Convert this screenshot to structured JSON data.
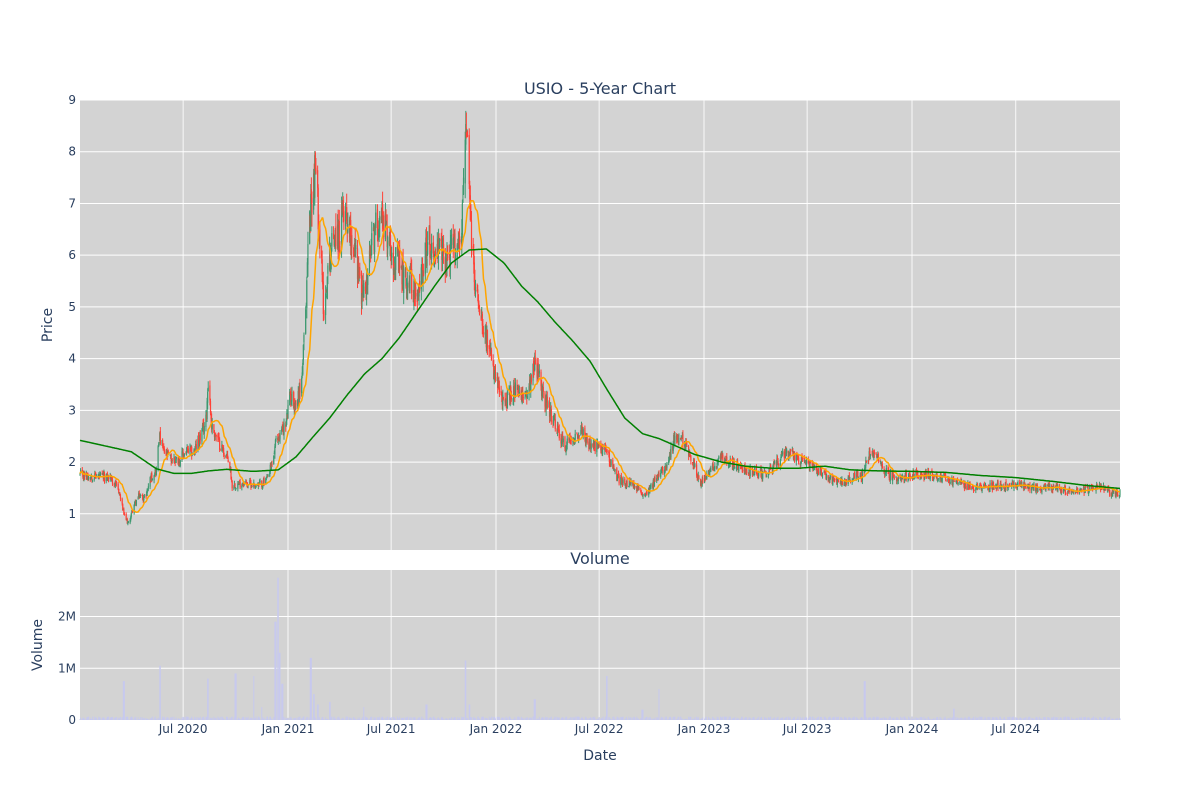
{
  "chart_data": {
    "type": "candlestick",
    "title": "USIO - 5-Year Chart",
    "price_panel": {
      "ylabel": "Price",
      "ylim": [
        0.3,
        9.0
      ],
      "yticks": [
        1,
        2,
        3,
        4,
        5,
        6,
        7,
        8,
        9
      ],
      "background": "#d3d3d3",
      "up_color": "#3d9970",
      "down_color": "#ff4136",
      "ma_short_color": "#ffa500",
      "ma_long_color": "#008000",
      "grid": true,
      "price_keypoints": [
        [
          "2020-01-02",
          1.75
        ],
        [
          "2020-02-01",
          1.72
        ],
        [
          "2020-02-25",
          1.7
        ],
        [
          "2020-03-10",
          1.45
        ],
        [
          "2020-03-20",
          0.95
        ],
        [
          "2020-03-27",
          0.8
        ],
        [
          "2020-04-05",
          1.15
        ],
        [
          "2020-04-15",
          1.35
        ],
        [
          "2020-04-25",
          1.3
        ],
        [
          "2020-05-05",
          1.7
        ],
        [
          "2020-05-15",
          1.85
        ],
        [
          "2020-05-20",
          2.5
        ],
        [
          "2020-05-28",
          2.2
        ],
        [
          "2020-06-10",
          2.05
        ],
        [
          "2020-06-25",
          2.05
        ],
        [
          "2020-07-05",
          2.2
        ],
        [
          "2020-07-20",
          2.2
        ],
        [
          "2020-08-01",
          2.5
        ],
        [
          "2020-08-10",
          2.8
        ],
        [
          "2020-08-14",
          3.6
        ],
        [
          "2020-08-20",
          2.7
        ],
        [
          "2020-09-01",
          2.4
        ],
        [
          "2020-09-10",
          2.2
        ],
        [
          "2020-09-20",
          2.0
        ],
        [
          "2020-09-25",
          1.55
        ],
        [
          "2020-10-15",
          1.6
        ],
        [
          "2020-11-10",
          1.55
        ],
        [
          "2020-11-25",
          1.65
        ],
        [
          "2020-12-05",
          2.0
        ],
        [
          "2020-12-10",
          2.35
        ],
        [
          "2020-12-20",
          2.6
        ],
        [
          "2020-12-28",
          2.7
        ],
        [
          "2021-01-05",
          3.3
        ],
        [
          "2021-01-15",
          3.1
        ],
        [
          "2021-01-25",
          3.6
        ],
        [
          "2021-02-01",
          4.8
        ],
        [
          "2021-02-05",
          6.2
        ],
        [
          "2021-02-10",
          7.0
        ],
        [
          "2021-02-18",
          7.7
        ],
        [
          "2021-02-25",
          6.5
        ],
        [
          "2021-03-05",
          4.9
        ],
        [
          "2021-03-15",
          6.0
        ],
        [
          "2021-03-25",
          6.5
        ],
        [
          "2021-04-01",
          6.3
        ],
        [
          "2021-04-10",
          7.0
        ],
        [
          "2021-04-20",
          6.5
        ],
        [
          "2021-05-01",
          6.0
        ],
        [
          "2021-05-10",
          5.2
        ],
        [
          "2021-05-20",
          5.5
        ],
        [
          "2021-05-28",
          6.2
        ],
        [
          "2021-06-05",
          6.6
        ],
        [
          "2021-06-15",
          6.8
        ],
        [
          "2021-06-25",
          6.4
        ],
        [
          "2021-07-05",
          6.0
        ],
        [
          "2021-07-15",
          5.8
        ],
        [
          "2021-07-25",
          5.5
        ],
        [
          "2021-08-05",
          5.6
        ],
        [
          "2021-08-15",
          5.0
        ],
        [
          "2021-08-25",
          5.8
        ],
        [
          "2021-09-05",
          6.3
        ],
        [
          "2021-09-15",
          6.0
        ],
        [
          "2021-09-25",
          6.1
        ],
        [
          "2021-10-05",
          5.9
        ],
        [
          "2021-10-15",
          6.1
        ],
        [
          "2021-10-25",
          6.2
        ],
        [
          "2021-11-01",
          6.4
        ],
        [
          "2021-11-05",
          7.4
        ],
        [
          "2021-11-08",
          8.5
        ],
        [
          "2021-11-12",
          8.0
        ],
        [
          "2021-11-18",
          6.5
        ],
        [
          "2021-11-25",
          5.4
        ],
        [
          "2021-12-05",
          5.0
        ],
        [
          "2021-12-15",
          4.4
        ],
        [
          "2021-12-25",
          3.9
        ],
        [
          "2022-01-05",
          3.4
        ],
        [
          "2022-01-15",
          3.1
        ],
        [
          "2022-01-25",
          3.3
        ],
        [
          "2022-02-05",
          3.4
        ],
        [
          "2022-02-15",
          3.2
        ],
        [
          "2022-03-01",
          3.5
        ],
        [
          "2022-03-10",
          4.0
        ],
        [
          "2022-03-20",
          3.5
        ],
        [
          "2022-04-01",
          3.1
        ],
        [
          "2022-04-15",
          2.7
        ],
        [
          "2022-05-01",
          2.3
        ],
        [
          "2022-05-15",
          2.5
        ],
        [
          "2022-06-01",
          2.6
        ],
        [
          "2022-06-15",
          2.3
        ],
        [
          "2022-07-01",
          2.3
        ],
        [
          "2022-07-15",
          2.2
        ],
        [
          "2022-08-01",
          1.7
        ],
        [
          "2022-08-15",
          1.6
        ],
        [
          "2022-09-01",
          1.55
        ],
        [
          "2022-09-15",
          1.35
        ],
        [
          "2022-10-01",
          1.55
        ],
        [
          "2022-10-15",
          1.75
        ],
        [
          "2022-11-01",
          2.1
        ],
        [
          "2022-11-10",
          2.45
        ],
        [
          "2022-11-25",
          2.4
        ],
        [
          "2022-12-10",
          2.1
        ],
        [
          "2022-12-25",
          1.6
        ],
        [
          "2023-01-05",
          1.7
        ],
        [
          "2023-01-20",
          1.95
        ],
        [
          "2023-02-05",
          2.1
        ],
        [
          "2023-02-20",
          1.95
        ],
        [
          "2023-03-10",
          1.85
        ],
        [
          "2023-04-01",
          1.8
        ],
        [
          "2023-04-20",
          1.75
        ],
        [
          "2023-05-10",
          2.0
        ],
        [
          "2023-05-25",
          2.2
        ],
        [
          "2023-06-10",
          2.1
        ],
        [
          "2023-06-25",
          2.0
        ],
        [
          "2023-07-10",
          1.9
        ],
        [
          "2023-07-25",
          1.8
        ],
        [
          "2023-08-15",
          1.65
        ],
        [
          "2023-09-01",
          1.6
        ],
        [
          "2023-09-20",
          1.7
        ],
        [
          "2023-10-05",
          1.75
        ],
        [
          "2023-10-15",
          2.1
        ],
        [
          "2023-10-25",
          2.15
        ],
        [
          "2023-11-05",
          2.0
        ],
        [
          "2023-11-20",
          1.75
        ],
        [
          "2023-12-10",
          1.7
        ],
        [
          "2024-01-01",
          1.75
        ],
        [
          "2024-02-01",
          1.75
        ],
        [
          "2024-03-01",
          1.7
        ],
        [
          "2024-04-01",
          1.55
        ],
        [
          "2024-05-01",
          1.5
        ],
        [
          "2024-06-01",
          1.55
        ],
        [
          "2024-07-01",
          1.55
        ],
        [
          "2024-08-01",
          1.5
        ],
        [
          "2024-09-01",
          1.5
        ],
        [
          "2024-10-01",
          1.45
        ],
        [
          "2024-11-01",
          1.45
        ],
        [
          "2024-11-20",
          1.55
        ],
        [
          "2024-12-15",
          1.4
        ],
        [
          "2024-12-31",
          1.4
        ]
      ],
      "ma_long_keypoints": [
        [
          "2020-01-02",
          2.42
        ],
        [
          "2020-04-01",
          2.2
        ],
        [
          "2020-05-15",
          1.87
        ],
        [
          "2020-06-15",
          1.78
        ],
        [
          "2020-07-15",
          1.78
        ],
        [
          "2020-08-15",
          1.83
        ],
        [
          "2020-09-15",
          1.86
        ],
        [
          "2020-11-01",
          1.82
        ],
        [
          "2020-12-15",
          1.85
        ],
        [
          "2021-01-15",
          2.1
        ],
        [
          "2021-02-15",
          2.5
        ],
        [
          "2021-03-15",
          2.85
        ],
        [
          "2021-04-15",
          3.3
        ],
        [
          "2021-05-15",
          3.7
        ],
        [
          "2021-06-15",
          4.0
        ],
        [
          "2021-07-15",
          4.4
        ],
        [
          "2021-08-15",
          4.9
        ],
        [
          "2021-09-15",
          5.4
        ],
        [
          "2021-10-15",
          5.85
        ],
        [
          "2021-11-15",
          6.1
        ],
        [
          "2021-12-15",
          6.12
        ],
        [
          "2022-01-15",
          5.85
        ],
        [
          "2022-02-15",
          5.4
        ],
        [
          "2022-03-15",
          5.1
        ],
        [
          "2022-04-15",
          4.7
        ],
        [
          "2022-05-15",
          4.35
        ],
        [
          "2022-06-15",
          3.95
        ],
        [
          "2022-07-15",
          3.4
        ],
        [
          "2022-08-15",
          2.85
        ],
        [
          "2022-09-15",
          2.55
        ],
        [
          "2022-10-15",
          2.45
        ],
        [
          "2022-11-15",
          2.3
        ],
        [
          "2022-12-15",
          2.15
        ],
        [
          "2023-02-01",
          2.0
        ],
        [
          "2023-03-15",
          1.92
        ],
        [
          "2023-05-01",
          1.88
        ],
        [
          "2023-06-15",
          1.88
        ],
        [
          "2023-08-01",
          1.92
        ],
        [
          "2023-09-15",
          1.85
        ],
        [
          "2023-11-01",
          1.83
        ],
        [
          "2024-01-01",
          1.82
        ],
        [
          "2024-03-01",
          1.8
        ],
        [
          "2024-05-01",
          1.74
        ],
        [
          "2024-07-01",
          1.7
        ],
        [
          "2024-09-01",
          1.63
        ],
        [
          "2024-11-01",
          1.55
        ],
        [
          "2024-12-31",
          1.49
        ]
      ]
    },
    "volume_panel": {
      "title": "Volume",
      "ylabel": "Volume",
      "ylim": [
        0,
        2900000
      ],
      "yticks": [
        0,
        1000000,
        2000000
      ],
      "ytick_labels": [
        "0",
        "1M",
        "2M"
      ],
      "bar_color": "#c7c9ee",
      "baseline": 40000,
      "spikes": [
        [
          "2020-03-19",
          750000
        ],
        [
          "2020-05-22",
          1050000
        ],
        [
          "2020-08-14",
          800000
        ],
        [
          "2020-10-01",
          900000
        ],
        [
          "2020-11-01",
          850000
        ],
        [
          "2020-11-15",
          250000
        ],
        [
          "2020-12-10",
          1900000
        ],
        [
          "2020-12-14",
          2750000
        ],
        [
          "2020-12-18",
          1300000
        ],
        [
          "2020-12-22",
          700000
        ],
        [
          "2021-02-10",
          1200000
        ],
        [
          "2021-02-15",
          500000
        ],
        [
          "2021-02-22",
          300000
        ],
        [
          "2021-03-15",
          350000
        ],
        [
          "2021-05-15",
          250000
        ],
        [
          "2021-09-01",
          300000
        ],
        [
          "2021-11-08",
          1150000
        ],
        [
          "2021-11-15",
          300000
        ],
        [
          "2022-03-10",
          400000
        ],
        [
          "2022-07-15",
          850000
        ],
        [
          "2022-09-15",
          200000
        ],
        [
          "2022-10-15",
          600000
        ],
        [
          "2023-10-10",
          750000
        ],
        [
          "2024-03-15",
          220000
        ]
      ]
    },
    "x_axis": {
      "xlabel": "Date",
      "range": [
        "2020-01-02",
        "2024-12-31"
      ],
      "tick_dates": [
        "2020-07-01",
        "2021-01-01",
        "2021-07-01",
        "2022-01-01",
        "2022-07-01",
        "2023-01-01",
        "2023-07-01",
        "2024-01-01",
        "2024-07-01"
      ],
      "tick_labels": [
        "Jul 2020",
        "Jan 2021",
        "Jul 2021",
        "Jan 2022",
        "Jul 2022",
        "Jan 2023",
        "Jul 2023",
        "Jan 2024",
        "Jul 2024"
      ]
    }
  }
}
